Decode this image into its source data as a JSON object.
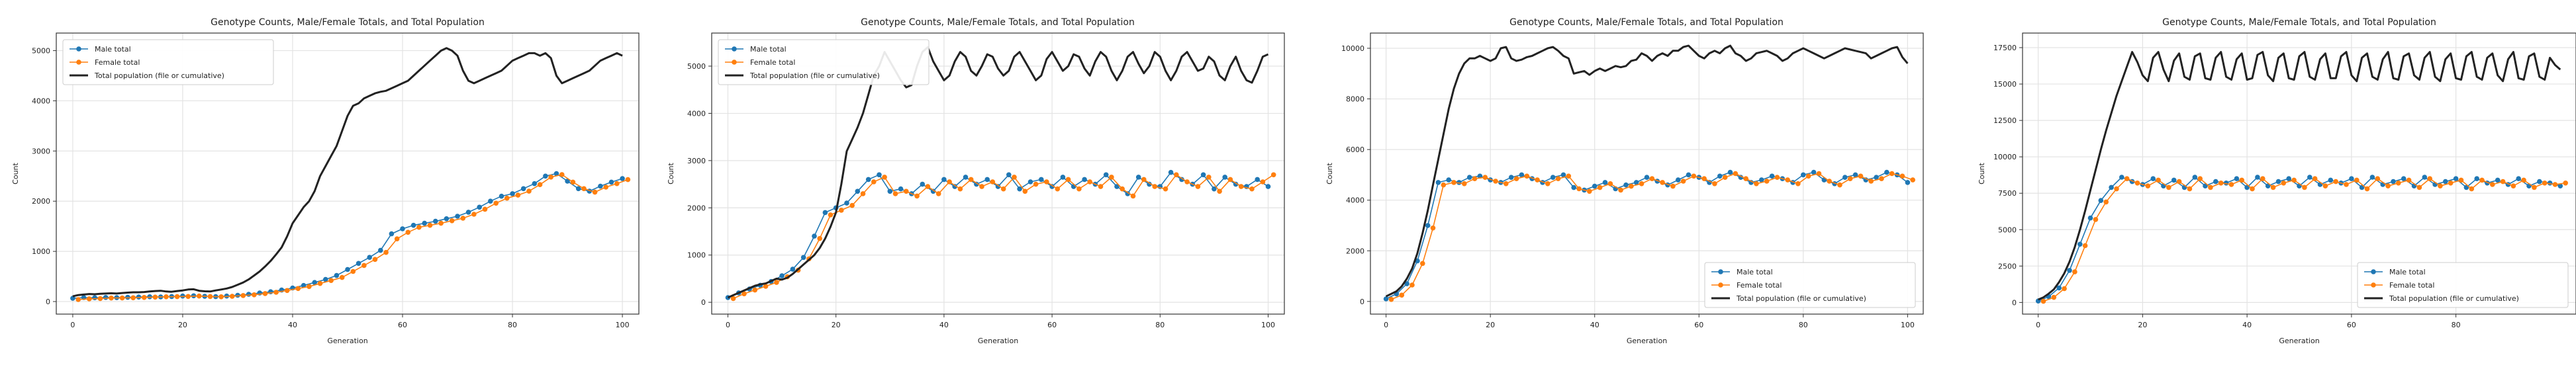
{
  "chart_data": [
    {
      "type": "line",
      "title": "Genotype Counts, Male/Female Totals, and Total Population",
      "xlabel": "Generation",
      "ylabel": "Count",
      "xlim": [
        -3,
        103
      ],
      "ylim": [
        -250,
        5350
      ],
      "xticks": [
        0,
        20,
        40,
        60,
        80,
        100
      ],
      "yticks": [
        0,
        1000,
        2000,
        3000,
        4000,
        5000
      ],
      "grid": true,
      "legend_position": "top-left",
      "series": [
        {
          "name": "Male total",
          "style": "dot-line",
          "color": "#1f77b4",
          "x0": 0,
          "step": 2,
          "values": [
            65,
            80,
            75,
            82,
            78,
            85,
            90,
            95,
            92,
            100,
            110,
            115,
            105,
            98,
            110,
            125,
            145,
            170,
            195,
            230,
            270,
            320,
            380,
            440,
            520,
            640,
            760,
            880,
            1020,
            1350,
            1450,
            1520,
            1560,
            1600,
            1650,
            1700,
            1780,
            1880,
            2000,
            2100,
            2150,
            2250,
            2350,
            2500,
            2550,
            2400,
            2250,
            2200,
            2300,
            2380,
            2450
          ]
        },
        {
          "name": "Female total",
          "style": "dot-line",
          "color": "#ff7f0e",
          "x0": 1,
          "step": 2,
          "values": [
            40,
            55,
            60,
            70,
            72,
            75,
            82,
            88,
            95,
            98,
            102,
            110,
            100,
            95,
            105,
            120,
            135,
            160,
            185,
            220,
            260,
            300,
            360,
            420,
            480,
            600,
            720,
            840,
            980,
            1250,
            1380,
            1480,
            1520,
            1560,
            1610,
            1660,
            1740,
            1840,
            1960,
            2060,
            2120,
            2200,
            2330,
            2480,
            2530,
            2380,
            2250,
            2180,
            2280,
            2350,
            2430
          ]
        },
        {
          "name": "Total population (file or cumulative)",
          "style": "line",
          "color": "#222222",
          "x0": 0,
          "step": 1,
          "values": [
            105,
            130,
            140,
            150,
            145,
            155,
            160,
            165,
            160,
            170,
            178,
            185,
            185,
            190,
            200,
            210,
            215,
            200,
            195,
            210,
            222,
            240,
            245,
            215,
            205,
            200,
            222,
            240,
            260,
            290,
            335,
            380,
            440,
            520,
            600,
            700,
            810,
            940,
            1080,
            1300,
            1560,
            1720,
            1880,
            2000,
            2200,
            2500,
            2700,
            2900,
            3100,
            3400,
            3700,
            3900,
            3950,
            4050,
            4100,
            4150,
            4180,
            4200,
            4250,
            4300,
            4350,
            4400,
            4500,
            4600,
            4700,
            4800,
            4900,
            5000,
            5050,
            5000,
            4900,
            4600,
            4400,
            4350,
            4400,
            4450,
            4500,
            4550,
            4600,
            4700,
            4800,
            4850,
            4900,
            4950,
            4950,
            4900,
            4950,
            4850,
            4500,
            4350,
            4400,
            4450,
            4500,
            4550,
            4600,
            4700,
            4800,
            4850,
            4900,
            4950,
            4900
          ]
        }
      ]
    },
    {
      "type": "line",
      "title": "Genotype Counts, Male/Female Totals, and Total Population",
      "xlabel": "Generation",
      "ylabel": "Count",
      "xlim": [
        -3,
        103
      ],
      "ylim": [
        -250,
        5700
      ],
      "xticks": [
        0,
        20,
        40,
        60,
        80,
        100
      ],
      "yticks": [
        0,
        1000,
        2000,
        3000,
        4000,
        5000
      ],
      "grid": true,
      "legend_position": "top-left",
      "series": [
        {
          "name": "Male total",
          "style": "dot-line",
          "color": "#1f77b4",
          "x0": 0,
          "step": 2,
          "values": [
            100,
            200,
            280,
            360,
            440,
            560,
            700,
            950,
            1400,
            1900,
            2000,
            2100,
            2350,
            2600,
            2700,
            2350,
            2400,
            2300,
            2500,
            2350,
            2600,
            2450,
            2650,
            2500,
            2600,
            2450,
            2700,
            2400,
            2550,
            2600,
            2450,
            2650,
            2450,
            2600,
            2500,
            2700,
            2450,
            2300,
            2650,
            2500,
            2450,
            2750,
            2600,
            2500,
            2700,
            2400,
            2650,
            2500,
            2450,
            2600,
            2450
          ]
        },
        {
          "name": "Female total",
          "style": "dot-line",
          "color": "#ff7f0e",
          "x0": 1,
          "step": 2,
          "values": [
            80,
            180,
            260,
            340,
            420,
            540,
            680,
            920,
            1350,
            1850,
            1950,
            2050,
            2300,
            2550,
            2650,
            2300,
            2350,
            2250,
            2450,
            2300,
            2550,
            2400,
            2600,
            2450,
            2550,
            2400,
            2650,
            2350,
            2500,
            2550,
            2400,
            2600,
            2400,
            2550,
            2450,
            2650,
            2400,
            2250,
            2600,
            2450,
            2400,
            2700,
            2550,
            2450,
            2650,
            2350,
            2600,
            2450,
            2400,
            2550,
            2700
          ]
        },
        {
          "name": "Total population (file or cumulative)",
          "style": "line",
          "color": "#222222",
          "x0": 0,
          "step": 1,
          "values": [
            100,
            150,
            200,
            250,
            300,
            350,
            380,
            400,
            450,
            500,
            480,
            520,
            600,
            700,
            800,
            900,
            1000,
            1150,
            1350,
            1600,
            1900,
            2500,
            3200,
            3450,
            3700,
            4000,
            4400,
            4800,
            5000,
            5300,
            5100,
            4900,
            4700,
            4550,
            4600,
            5000,
            5300,
            5400,
            5100,
            4900,
            4700,
            4800,
            5100,
            5300,
            5200,
            4900,
            4800,
            5000,
            5250,
            5200,
            4950,
            4800,
            4900,
            5200,
            5300,
            5100,
            4900,
            4700,
            4800,
            5150,
            5300,
            5100,
            4900,
            5000,
            5250,
            5200,
            4950,
            4800,
            5100,
            5300,
            5200,
            4900,
            4700,
            4900,
            5200,
            5300,
            5050,
            4850,
            5000,
            5300,
            5200,
            4900,
            4700,
            4900,
            5200,
            5300,
            5100,
            4900,
            4950,
            5200,
            5100,
            4800,
            4700,
            5000,
            5200,
            4900,
            4700,
            4650,
            4900,
            5200,
            5250
          ]
        }
      ]
    },
    {
      "type": "line",
      "title": "Genotype Counts, Male/Female Totals, and Total Population",
      "xlabel": "Generation",
      "ylabel": "Count",
      "xlim": [
        -3,
        103
      ],
      "ylim": [
        -500,
        10600
      ],
      "xticks": [
        0,
        20,
        40,
        60,
        80,
        100
      ],
      "yticks": [
        0,
        2000,
        4000,
        6000,
        8000,
        10000
      ],
      "grid": true,
      "legend_position": "bottom-right",
      "series": [
        {
          "name": "Male total",
          "style": "dot-line",
          "color": "#1f77b4",
          "x0": 0,
          "step": 2,
          "values": [
            100,
            300,
            700,
            1600,
            3000,
            4700,
            4800,
            4700,
            4900,
            4950,
            4800,
            4700,
            4900,
            5000,
            4850,
            4700,
            4900,
            5000,
            4500,
            4400,
            4550,
            4700,
            4450,
            4600,
            4700,
            4900,
            4750,
            4600,
            4800,
            5000,
            4900,
            4700,
            4950,
            5100,
            4900,
            4700,
            4800,
            4950,
            4850,
            4700,
            5000,
            5100,
            4800,
            4650,
            4900,
            5000,
            4800,
            4900,
            5100,
            5000,
            4700
          ]
        },
        {
          "name": "Female total",
          "style": "dot-line",
          "color": "#ff7f0e",
          "x0": 1,
          "step": 2,
          "values": [
            80,
            250,
            650,
            1500,
            2900,
            4600,
            4700,
            4650,
            4850,
            4900,
            4750,
            4650,
            4850,
            4950,
            4800,
            4650,
            4850,
            4950,
            4450,
            4350,
            4500,
            4650,
            4400,
            4550,
            4650,
            4850,
            4700,
            4550,
            4750,
            4950,
            4850,
            4650,
            4900,
            5050,
            4850,
            4650,
            4750,
            4900,
            4800,
            4650,
            4950,
            5050,
            4750,
            4600,
            4850,
            4950,
            4750,
            4850,
            5050,
            4950,
            4800
          ]
        },
        {
          "name": "Total population (file or cumulative)",
          "style": "line",
          "color": "#222222",
          "x0": 0,
          "step": 1,
          "values": [
            200,
            300,
            400,
            600,
            900,
            1300,
            1900,
            2700,
            3600,
            4600,
            5600,
            6600,
            7600,
            8400,
            9000,
            9400,
            9600,
            9600,
            9700,
            9600,
            9500,
            9600,
            10000,
            10050,
            9600,
            9500,
            9550,
            9650,
            9700,
            9800,
            9900,
            10000,
            10050,
            9900,
            9700,
            9600,
            9000,
            9050,
            9100,
            8950,
            9100,
            9200,
            9100,
            9200,
            9300,
            9250,
            9300,
            9500,
            9550,
            9800,
            9700,
            9500,
            9700,
            9800,
            9700,
            9900,
            9900,
            10050,
            10100,
            9900,
            9700,
            9600,
            9800,
            9900,
            9800,
            10000,
            10100,
            9800,
            9700,
            9500,
            9600,
            9800,
            9850,
            9900,
            9800,
            9700,
            9500,
            9600,
            9800,
            9900,
            10000,
            9900,
            9800,
            9700,
            9600,
            9700,
            9800,
            9900,
            10000,
            9950,
            9900,
            9850,
            9800,
            9600,
            9700,
            9800,
            9900,
            10000,
            10050,
            9650,
            9400
          ]
        }
      ]
    },
    {
      "type": "line",
      "title": "Genotype Counts, Male/Female Totals, and Total Population",
      "xlabel": "Generation",
      "ylabel": "Count",
      "xlim": [
        -3,
        103
      ],
      "ylim": [
        -800,
        18500
      ],
      "xticks": [
        0,
        20,
        40,
        60,
        80
      ],
      "yticks": [
        0,
        2500,
        5000,
        7500,
        10000,
        12500,
        15000,
        17500
      ],
      "grid": true,
      "legend_position": "bottom-right",
      "series": [
        {
          "name": "Male total",
          "style": "dot-line",
          "color": "#1f77b4",
          "x0": 0,
          "step": 2,
          "values": [
            100,
            400,
            1000,
            2200,
            4000,
            5800,
            7000,
            7900,
            8600,
            8300,
            8100,
            8500,
            8000,
            8400,
            7900,
            8600,
            8000,
            8300,
            8200,
            8500,
            7900,
            8600,
            8000,
            8300,
            8500,
            8000,
            8600,
            8100,
            8400,
            8200,
            8500,
            7900,
            8600,
            8100,
            8300,
            8500,
            8000,
            8600,
            8100,
            8300,
            8500,
            7900,
            8500,
            8200,
            8400,
            8100,
            8500,
            8000,
            8300,
            8200,
            8000
          ]
        },
        {
          "name": "Female total",
          "style": "dot-line",
          "color": "#ff7f0e",
          "x0": 1,
          "step": 2,
          "values": [
            80,
            350,
            950,
            2100,
            3900,
            5700,
            6900,
            7800,
            8500,
            8200,
            8000,
            8400,
            7900,
            8300,
            7800,
            8500,
            7900,
            8200,
            8100,
            8400,
            7800,
            8500,
            7900,
            8200,
            8400,
            7900,
            8500,
            8000,
            8300,
            8100,
            8400,
            7800,
            8500,
            8000,
            8200,
            8400,
            7900,
            8500,
            8000,
            8200,
            8400,
            7800,
            8400,
            8100,
            8300,
            8000,
            8400,
            7900,
            8200,
            8100,
            8200
          ]
        },
        {
          "name": "Total population (file or cumulative)",
          "style": "line",
          "color": "#222222",
          "x0": 0,
          "step": 1,
          "values": [
            200,
            350,
            600,
            900,
            1400,
            2000,
            2800,
            3800,
            5000,
            6300,
            7700,
            9100,
            10500,
            11800,
            13000,
            14200,
            15200,
            16200,
            17200,
            16500,
            15600,
            15200,
            16800,
            17200,
            16000,
            15200,
            16600,
            17100,
            15500,
            15300,
            16900,
            17100,
            15400,
            15300,
            16800,
            17200,
            15500,
            15300,
            16700,
            17100,
            15300,
            15400,
            17000,
            17200,
            15600,
            15200,
            16800,
            17100,
            15400,
            15300,
            16900,
            17200,
            15500,
            15300,
            16700,
            17100,
            15400,
            15400,
            16900,
            17200,
            15600,
            15200,
            16800,
            17100,
            15500,
            15300,
            16700,
            17200,
            15400,
            15300,
            16900,
            17100,
            15600,
            15300,
            16800,
            17200,
            15500,
            15200,
            16700,
            17100,
            15400,
            15300,
            16900,
            17200,
            15500,
            15300,
            16800,
            17100,
            15600,
            15200,
            16700,
            17200,
            15400,
            15300,
            16900,
            17100,
            15500,
            15300,
            16800,
            16300,
            16000
          ]
        }
      ]
    }
  ]
}
